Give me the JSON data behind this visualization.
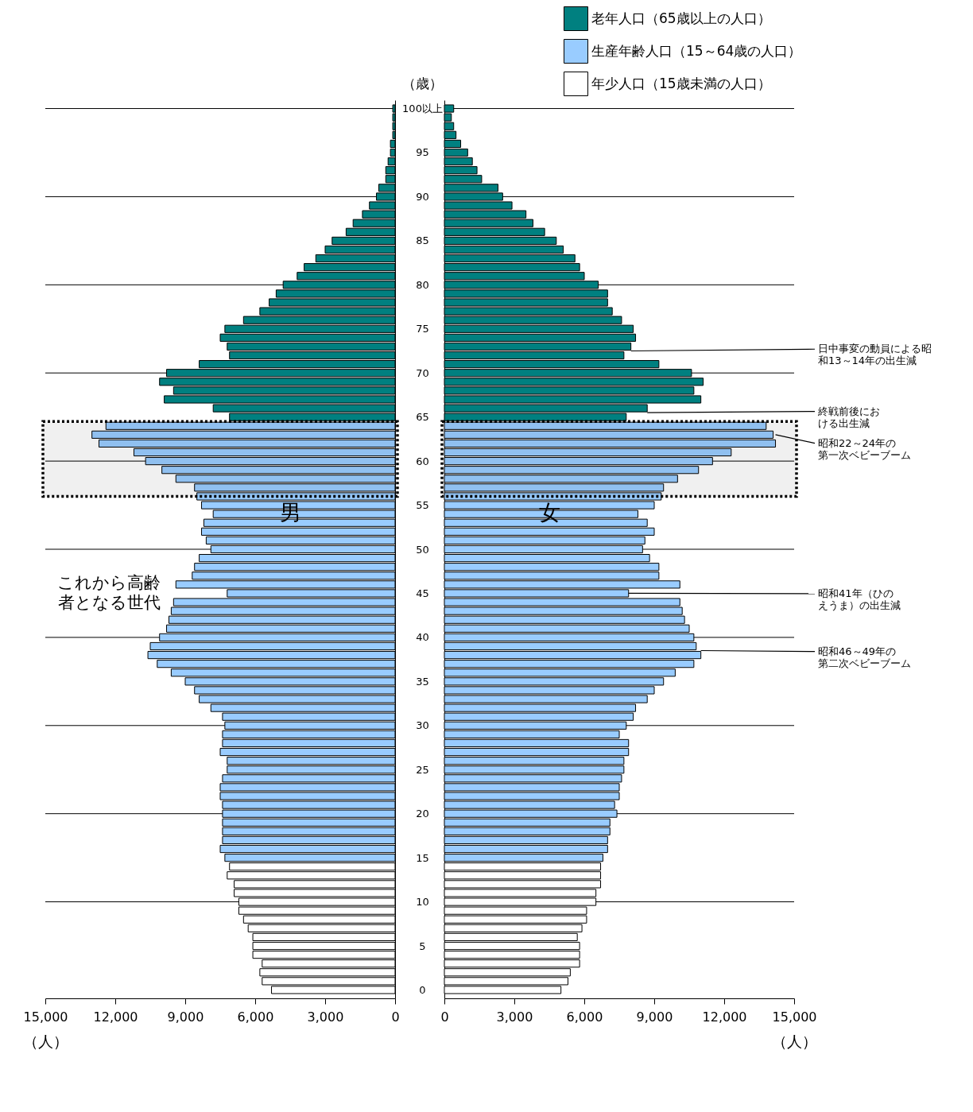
{
  "chart_data": [
    {
      "type": "bar",
      "orientation": "horizontal",
      "title": "男",
      "xlabel": "（人）",
      "xlim": [
        15000,
        0
      ],
      "xticks": [
        {
          "value": 15000,
          "label": "15,000"
        },
        {
          "value": 12000,
          "label": "12,000"
        },
        {
          "value": 9000,
          "label": "9,000"
        },
        {
          "value": 6000,
          "label": "6,000"
        },
        {
          "value": 3000,
          "label": "3,000"
        },
        0
      ],
      "ylim": [
        -0.5,
        100.5
      ],
      "tick_labels": "x",
      "series": [
        {
          "color": "#008080",
          "x": [
            65,
            66,
            67,
            68,
            69,
            70,
            71,
            72,
            73,
            74,
            75,
            76,
            77,
            78,
            79,
            80,
            81,
            82,
            83,
            84,
            85,
            86,
            87,
            88,
            89,
            90,
            91,
            92,
            93,
            94,
            95,
            96,
            97,
            98,
            99,
            100
          ],
          "values": [
            7100,
            7800,
            9900,
            9500,
            10100,
            9800,
            8400,
            7100,
            7200,
            7500,
            7300,
            6500,
            5800,
            5400,
            5100,
            4800,
            4200,
            3900,
            3400,
            3000,
            2700,
            2100,
            1800,
            1400,
            1100,
            800,
            700,
            400,
            400,
            300,
            200,
            200,
            100,
            100,
            100,
            100
          ]
        },
        {
          "color": "#99ccff",
          "x": [
            15,
            16,
            17,
            18,
            19,
            20,
            21,
            22,
            23,
            24,
            25,
            26,
            27,
            28,
            29,
            30,
            31,
            32,
            33,
            34,
            35,
            36,
            37,
            38,
            39,
            40,
            41,
            42,
            43,
            44,
            45,
            46,
            47,
            48,
            49,
            50,
            51,
            52,
            53,
            54,
            55,
            56,
            57,
            58,
            59,
            60,
            61,
            62,
            63,
            64
          ],
          "values": [
            7300,
            7500,
            7400,
            7400,
            7400,
            7400,
            7400,
            7500,
            7500,
            7400,
            7200,
            7200,
            7500,
            7400,
            7400,
            7300,
            7400,
            7900,
            8400,
            8600,
            9000,
            9600,
            10200,
            10600,
            10500,
            10100,
            9800,
            9700,
            9600,
            9500,
            7200,
            9400,
            8700,
            8600,
            8400,
            7900,
            8100,
            8300,
            8200,
            7800,
            8300,
            8500,
            8600,
            9400,
            10000,
            10700,
            11200,
            12700,
            13000,
            12400
          ]
        },
        {
          "color": "#ffffff",
          "x": [
            0,
            1,
            2,
            3,
            4,
            5,
            6,
            7,
            8,
            9,
            10,
            11,
            12,
            13,
            14
          ],
          "values": [
            5300,
            5700,
            5800,
            5700,
            6100,
            6100,
            6100,
            6300,
            6500,
            6700,
            6700,
            6900,
            6900,
            7200,
            7100
          ]
        }
      ],
      "ref_lines": [
        {
          "axis": "y",
          "value": 10
        },
        {
          "axis": "y",
          "value": 20
        },
        {
          "axis": "y",
          "value": 30
        },
        {
          "axis": "y",
          "value": 40
        },
        {
          "axis": "y",
          "value": 50
        },
        {
          "axis": "y",
          "value": 60
        },
        {
          "axis": "y",
          "value": 70
        },
        {
          "axis": "y",
          "value": 80
        },
        {
          "axis": "y",
          "value": 90
        },
        {
          "axis": "y",
          "value": 100
        }
      ],
      "bands": [
        {
          "axis": "y",
          "from": 56,
          "to": 64.5,
          "label": "これから高齢者となる世代"
        }
      ]
    },
    {
      "type": "bar",
      "orientation": "horizontal",
      "title": "女",
      "xlabel": "（人）",
      "ylabel": "（歳）",
      "xlim": [
        0,
        15000
      ],
      "xticks": [
        0,
        {
          "value": 3000,
          "label": "3,000"
        },
        {
          "value": 6000,
          "label": "6,000"
        },
        {
          "value": 9000,
          "label": "9,000"
        },
        {
          "value": 12000,
          "label": "12,000"
        },
        {
          "value": 15000,
          "label": "15,000"
        }
      ],
      "ylim": [
        -0.5,
        100.5
      ],
      "yticks": [
        0,
        5,
        10,
        15,
        20,
        25,
        30,
        35,
        40,
        45,
        50,
        55,
        60,
        65,
        70,
        75,
        80,
        85,
        90,
        95,
        {
          "value": 100,
          "label": "100以上"
        }
      ],
      "legend": "top right",
      "series": [
        {
          "name": "老年人口（65歳以上の人口）",
          "color": "#008080",
          "x": [
            65,
            66,
            67,
            68,
            69,
            70,
            71,
            72,
            73,
            74,
            75,
            76,
            77,
            78,
            79,
            80,
            81,
            82,
            83,
            84,
            85,
            86,
            87,
            88,
            89,
            90,
            91,
            92,
            93,
            94,
            95,
            96,
            97,
            98,
            99,
            100
          ],
          "values": [
            7800,
            8700,
            11000,
            10700,
            11100,
            10600,
            9200,
            7700,
            8000,
            8200,
            8100,
            7600,
            7200,
            7000,
            7000,
            6600,
            6000,
            5800,
            5600,
            5100,
            4800,
            4300,
            3800,
            3500,
            2900,
            2500,
            2300,
            1600,
            1400,
            1200,
            1000,
            700,
            500,
            400,
            300,
            400
          ]
        },
        {
          "name": "生産年齢人口（15～64歳の人口）",
          "color": "#99ccff",
          "x": [
            15,
            16,
            17,
            18,
            19,
            20,
            21,
            22,
            23,
            24,
            25,
            26,
            27,
            28,
            29,
            30,
            31,
            32,
            33,
            34,
            35,
            36,
            37,
            38,
            39,
            40,
            41,
            42,
            43,
            44,
            45,
            46,
            47,
            48,
            49,
            50,
            51,
            52,
            53,
            54,
            55,
            56,
            57,
            58,
            59,
            60,
            61,
            62,
            63,
            64
          ],
          "values": [
            6800,
            7000,
            7000,
            7100,
            7100,
            7400,
            7300,
            7500,
            7500,
            7600,
            7700,
            7700,
            7900,
            7900,
            7500,
            7800,
            8100,
            8200,
            8700,
            9000,
            9400,
            9900,
            10700,
            11000,
            10800,
            10700,
            10500,
            10300,
            10200,
            10100,
            7900,
            10100,
            9200,
            9200,
            8800,
            8500,
            8600,
            9000,
            8700,
            8300,
            9000,
            9300,
            9400,
            10000,
            10900,
            11500,
            12300,
            14200,
            14100,
            13800
          ]
        },
        {
          "name": "年少人口（15歳未満の人口）",
          "color": "#ffffff",
          "x": [
            0,
            1,
            2,
            3,
            4,
            5,
            6,
            7,
            8,
            9,
            10,
            11,
            12,
            13,
            14
          ],
          "values": [
            5000,
            5300,
            5400,
            5800,
            5800,
            5800,
            5700,
            5900,
            6100,
            6100,
            6500,
            6500,
            6700,
            6700,
            6700
          ]
        }
      ],
      "ref_lines": [
        {
          "axis": "y",
          "value": 10
        },
        {
          "axis": "y",
          "value": 20
        },
        {
          "axis": "y",
          "value": 30
        },
        {
          "axis": "y",
          "value": 40
        },
        {
          "axis": "y",
          "value": 50
        },
        {
          "axis": "y",
          "value": 60
        },
        {
          "axis": "y",
          "value": 70
        },
        {
          "axis": "y",
          "value": 80
        },
        {
          "axis": "y",
          "value": 90
        },
        {
          "axis": "y",
          "value": 100
        }
      ],
      "bands": [
        {
          "axis": "y",
          "from": 56,
          "to": 64.5
        }
      ],
      "annotations": [
        {
          "text": "日中事変の動員による昭和13～14年の出生減",
          "x": 8000,
          "y": 72.5
        },
        {
          "text": "終戦前後における出生減",
          "x": 8700,
          "y": 65.5
        },
        {
          "text": "昭和22～24年の第一次ベビーブーム",
          "x": 14200,
          "y": 63
        },
        {
          "text": "昭和41年（ひのえうま）の出生減",
          "x": 7900,
          "y": 45
        },
        {
          "text": "昭和46～49年の第二次ベビーブーム",
          "x": 11000,
          "y": 38.5
        }
      ]
    }
  ]
}
